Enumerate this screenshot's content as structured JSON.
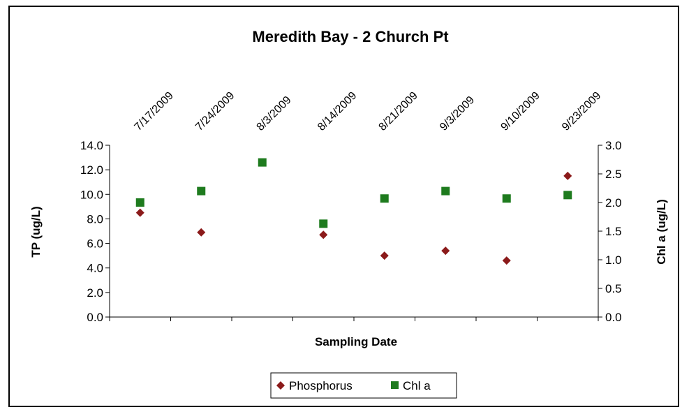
{
  "chart_data": {
    "type": "scatter",
    "title": "Meredith Bay - 2 Church Pt",
    "xlabel": "Sampling Date",
    "ylabel": "TP (ug/L)",
    "y2label": "Chl a (ug/L)",
    "categories": [
      "7/17/2009",
      "7/24/2009",
      "8/3/2009",
      "8/14/2009",
      "8/21/2009",
      "9/3/2009",
      "9/10/2009",
      "9/23/2009"
    ],
    "ylim": [
      0,
      14
    ],
    "y2lim": [
      0,
      3
    ],
    "yticks": [
      "0.0",
      "2.0",
      "4.0",
      "6.0",
      "8.0",
      "10.0",
      "12.0",
      "14.0"
    ],
    "y2ticks": [
      "0.0",
      "0.5",
      "1.0",
      "1.5",
      "2.0",
      "2.5",
      "3.0"
    ],
    "series": [
      {
        "name": "Phosphorus",
        "axis": "left",
        "marker": "diamond",
        "color": "#8B1A1A",
        "values": [
          8.5,
          6.9,
          null,
          6.7,
          5.0,
          5.4,
          4.6,
          11.5
        ]
      },
      {
        "name": "Chl a",
        "axis": "right",
        "marker": "square",
        "color": "#1E7B1E",
        "values": [
          2.0,
          2.2,
          2.7,
          1.63,
          2.07,
          2.2,
          2.07,
          2.13
        ]
      }
    ],
    "legend_position": "bottom",
    "grid": false
  }
}
